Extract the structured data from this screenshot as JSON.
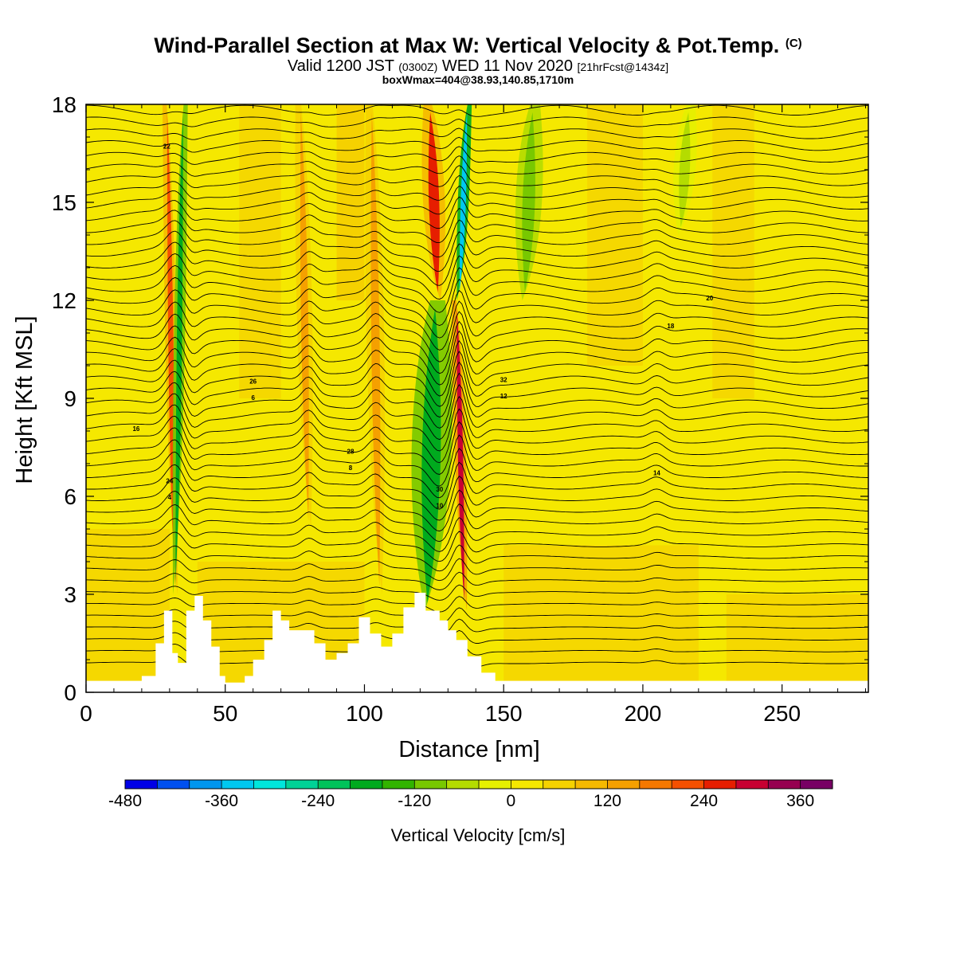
{
  "title": {
    "main": "Wind-Parallel Section at Max W: Vertical Velocity & Pot.Temp.",
    "mark": "(C)",
    "valid_prefix": "Valid 1200 JST",
    "valid_z": "(0300Z)",
    "valid_date": "WED 11 Nov 2020",
    "fcst": "[21hrFcst@1434z]",
    "box": "boxWmax=404@38.93,140.85,1710m"
  },
  "colors": {
    "background": "#ffffff",
    "field_base": "#f5e800",
    "terrain": "#ffffff",
    "contour": "#000000"
  },
  "chart_data": {
    "type": "heatmap",
    "xlabel": "Distance [nm]",
    "ylabel": "Height [Kft MSL]",
    "xlim": [
      0,
      281
    ],
    "ylim": [
      0,
      18
    ],
    "xticks": [
      "0",
      "50",
      "100",
      "150",
      "200",
      "250"
    ],
    "yticks": [
      "0",
      "3",
      "6",
      "9",
      "12",
      "15",
      "18"
    ],
    "colorbar": {
      "label": "Vertical Velocity [cm/s]",
      "tick_labels": [
        "-480",
        "-360",
        "-240",
        "-120",
        "0",
        "120",
        "240",
        "360"
      ],
      "range": [
        -480,
        400
      ],
      "step": 40,
      "colors": [
        "#0000e6",
        "#0050f0",
        "#0096ee",
        "#00c8f0",
        "#00e6dc",
        "#00d296",
        "#00c35a",
        "#00aa1e",
        "#32b400",
        "#78c800",
        "#b4dc00",
        "#e6f000",
        "#f5e800",
        "#f5d200",
        "#f5b900",
        "#f5a000",
        "#f57800",
        "#f55000",
        "#e61e00",
        "#c80032",
        "#960050",
        "#780064"
      ]
    },
    "terrain": [
      [
        0,
        0.35
      ],
      [
        10,
        0.35
      ],
      [
        20,
        0.5
      ],
      [
        25,
        1.5
      ],
      [
        28,
        2.5
      ],
      [
        31,
        1.2
      ],
      [
        33,
        0.9
      ],
      [
        36,
        2.5
      ],
      [
        39,
        2.95
      ],
      [
        42,
        2.2
      ],
      [
        45,
        1.4
      ],
      [
        48,
        0.5
      ],
      [
        50,
        0.3
      ],
      [
        53,
        0.3
      ],
      [
        57,
        0.5
      ],
      [
        60,
        1.0
      ],
      [
        64,
        1.6
      ],
      [
        67,
        2.5
      ],
      [
        70,
        2.2
      ],
      [
        73,
        1.9
      ],
      [
        78,
        1.9
      ],
      [
        82,
        1.5
      ],
      [
        86,
        1.0
      ],
      [
        90,
        1.2
      ],
      [
        94,
        1.5
      ],
      [
        98,
        2.3
      ],
      [
        102,
        1.8
      ],
      [
        106,
        1.4
      ],
      [
        110,
        1.8
      ],
      [
        114,
        2.6
      ],
      [
        118,
        3.05
      ],
      [
        122,
        2.5
      ],
      [
        127,
        2.2
      ],
      [
        130,
        1.9
      ],
      [
        133,
        1.6
      ],
      [
        137,
        1.1
      ],
      [
        142,
        0.6
      ],
      [
        147,
        0.35
      ],
      [
        150,
        0.35
      ],
      [
        281,
        0.35
      ]
    ],
    "theta_label_values": [
      "4",
      "6",
      "8",
      "10",
      "12",
      "14",
      "16",
      "18",
      "20",
      "22",
      "24",
      "26",
      "28",
      "30",
      "32"
    ],
    "vertical_velocity_features": [
      {
        "sign": "up",
        "x_range": [
          28,
          33
        ],
        "z_range": [
          3,
          18
        ],
        "value": 200
      },
      {
        "sign": "down",
        "x_range": [
          31,
          36
        ],
        "z_range": [
          3,
          18
        ],
        "value": -200
      },
      {
        "sign": "up",
        "x_range": [
          75,
          82
        ],
        "z_range": [
          5,
          18
        ],
        "value": 120
      },
      {
        "sign": "up",
        "x_range": [
          100,
          108
        ],
        "z_range": [
          3,
          18
        ],
        "value": 150
      },
      {
        "sign": "up",
        "x_range": [
          120,
          130
        ],
        "z_range": [
          12,
          18
        ],
        "value": 240
      },
      {
        "sign": "down",
        "x_range": [
          115,
          133
        ],
        "z_range": [
          2.5,
          12
        ],
        "value": -200
      },
      {
        "sign": "down",
        "x_range": [
          133,
          138
        ],
        "z_range": [
          12,
          18
        ],
        "value": -360
      },
      {
        "sign": "up",
        "x_range": [
          132,
          137
        ],
        "z_range": [
          2.5,
          12
        ],
        "value": 300
      },
      {
        "sign": "down",
        "x_range": [
          153,
          165
        ],
        "z_range": [
          12,
          18
        ],
        "value": -120
      },
      {
        "sign": "down",
        "x_range": [
          210,
          220
        ],
        "z_range": [
          14,
          18
        ],
        "value": -80
      }
    ]
  }
}
